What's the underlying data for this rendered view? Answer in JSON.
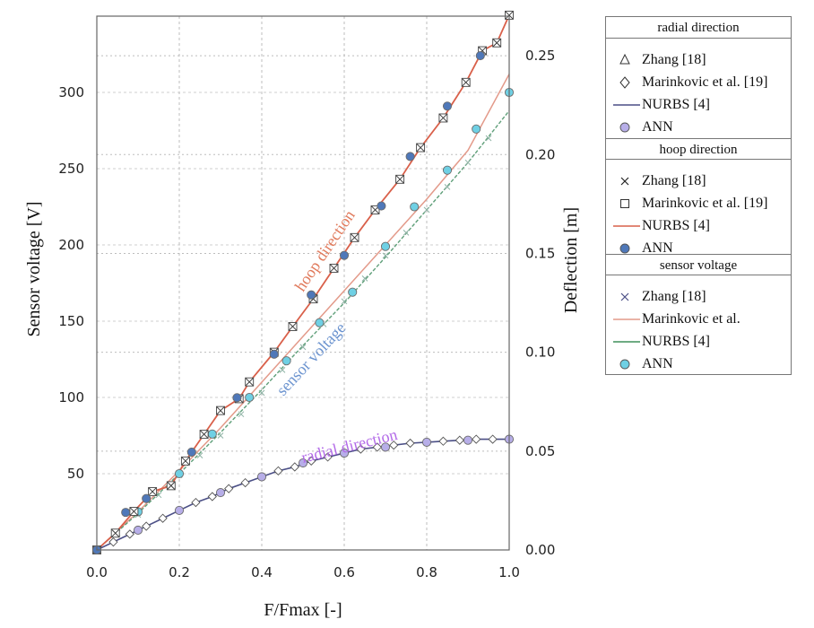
{
  "chart_data": {
    "type": "line",
    "xlabel": "F/Fmax [-]",
    "ylabel": "Sensor voltage [V]",
    "y2label": "Deflection [m]",
    "xlim": [
      0,
      1
    ],
    "ylim": [
      0,
      350
    ],
    "y2lim": [
      0,
      0.27
    ],
    "grid": true,
    "x_ticks": [
      "0.0",
      "0.2",
      "0.4",
      "0.6",
      "0.8",
      "1.0"
    ],
    "y_ticks": [
      "50",
      "100",
      "150",
      "200",
      "250",
      "300"
    ],
    "y2_ticks": [
      "0.00",
      "0.05",
      "0.10",
      "0.15",
      "0.20",
      "0.25"
    ],
    "curve_labels": [
      "hoop direction",
      "sensor voltage",
      "radial direction"
    ],
    "legend": {
      "position": "right, outside",
      "groups": [
        {
          "title": "radial direction",
          "entries": [
            {
              "label": "Zhang [18]",
              "marker": "triangle"
            },
            {
              "label": "Marinkovic et al. [19]",
              "marker": "diamond"
            },
            {
              "label": "NURBS [4]",
              "marker": "line",
              "color": "#4b4f86"
            },
            {
              "label": "ANN",
              "marker": "circle",
              "color": "#b7aee8"
            }
          ]
        },
        {
          "title": "hoop direction",
          "entries": [
            {
              "label": "Zhang [18]",
              "marker": "x"
            },
            {
              "label": "Marinkovic et al. [19]",
              "marker": "square"
            },
            {
              "label": "NURBS [4]",
              "marker": "line",
              "color": "#d9604a"
            },
            {
              "label": "ANN",
              "marker": "circle",
              "color": "#4f78b9"
            }
          ]
        },
        {
          "title": "sensor voltage",
          "entries": [
            {
              "label": "Zhang [18]",
              "marker": "x",
              "color": "#4b4f86"
            },
            {
              "label": "Marinkovic et al.",
              "marker": "line",
              "color": "#e39a8a"
            },
            {
              "label": "NURBS [4]",
              "marker": "line",
              "color": "#3f8f5a"
            },
            {
              "label": "ANN",
              "marker": "circle",
              "color": "#6fd0e4"
            }
          ]
        }
      ]
    },
    "series": [
      {
        "axis": "y2",
        "x": [
          0.0,
          0.04,
          0.08,
          0.12,
          0.16,
          0.2,
          0.24,
          0.28,
          0.32,
          0.36,
          0.4,
          0.44,
          0.48,
          0.52,
          0.56,
          0.6,
          0.64,
          0.68,
          0.72,
          0.76,
          0.8,
          0.84,
          0.88,
          0.92,
          0.96,
          1.0
        ],
        "y": [
          0.0,
          0.004,
          0.008,
          0.012,
          0.016,
          0.02,
          0.024,
          0.027,
          0.031,
          0.034,
          0.037,
          0.04,
          0.042,
          0.045,
          0.047,
          0.049,
          0.051,
          0.052,
          0.053,
          0.054,
          0.0545,
          0.055,
          0.0555,
          0.056,
          0.056,
          0.056
        ],
        "color": "#4b4f86",
        "marker": "diamond",
        "ann": {
          "x": [
            0.0,
            0.1,
            0.2,
            0.3,
            0.4,
            0.5,
            0.6,
            0.7,
            0.8,
            0.9,
            1.0
          ],
          "y": [
            0.0,
            0.01,
            0.02,
            0.029,
            0.037,
            0.044,
            0.049,
            0.052,
            0.0545,
            0.0555,
            0.056
          ],
          "color": "#b7aee8"
        }
      },
      {
        "axis": "y2",
        "x": [
          0.0,
          0.045,
          0.09,
          0.135,
          0.18,
          0.215,
          0.26,
          0.3,
          0.345,
          0.37,
          0.43,
          0.475,
          0.525,
          0.575,
          0.625,
          0.675,
          0.735,
          0.785,
          0.84,
          0.895,
          0.935,
          0.97,
          1.0
        ],
        "y": [
          0.0,
          0.0085,
          0.0195,
          0.0295,
          0.0325,
          0.045,
          0.0585,
          0.0705,
          0.0765,
          0.085,
          0.1,
          0.113,
          0.127,
          0.1425,
          0.158,
          0.172,
          0.1875,
          0.2035,
          0.2185,
          0.2365,
          0.2525,
          0.2565,
          0.2705
        ],
        "color": "#d9604a",
        "marker": "x-square",
        "ann": {
          "x": [
            0.0,
            0.07,
            0.12,
            0.23,
            0.34,
            0.43,
            0.52,
            0.6,
            0.69,
            0.76,
            0.85,
            0.93
          ],
          "y": [
            0.0,
            0.019,
            0.026,
            0.0495,
            0.077,
            0.099,
            0.129,
            0.149,
            0.174,
            0.199,
            0.2245,
            0.25
          ],
          "color": "#4f78b9"
        }
      },
      {
        "axis": "y",
        "x": [
          0.0,
          0.1,
          0.2,
          0.3,
          0.4,
          0.5,
          0.6,
          0.7,
          0.8,
          0.9,
          1.0
        ],
        "y": [
          0,
          25,
          52,
          80,
          110,
          140,
          170,
          200,
          230,
          262,
          312
        ],
        "color": "#e39a8a",
        "nurbs": {
          "y": [
            0,
            24,
            50,
            77,
            105,
            134,
            162,
            192,
            223,
            254,
            288
          ],
          "color": "#5f9f79"
        },
        "zhang": {
          "x": [
            0.05,
            0.1,
            0.15,
            0.2,
            0.25,
            0.3,
            0.35,
            0.4,
            0.45,
            0.5,
            0.55,
            0.6,
            0.65,
            0.7,
            0.75,
            0.8,
            0.85,
            0.9,
            0.95
          ],
          "y": [
            11,
            23,
            36,
            49,
            62,
            75,
            89,
            103,
            118,
            133,
            148,
            163,
            178,
            193,
            208,
            223,
            238,
            254,
            270
          ],
          "color": "#8fb3a5"
        },
        "ann": {
          "x": [
            0.0,
            0.1,
            0.2,
            0.28,
            0.37,
            0.46,
            0.54,
            0.62,
            0.7,
            0.77,
            0.85,
            0.92,
            1.0
          ],
          "y": [
            0,
            25,
            50,
            76,
            100,
            124,
            149,
            169,
            199,
            225,
            249,
            276,
            300
          ],
          "color": "#6fd0e4"
        }
      }
    ]
  }
}
